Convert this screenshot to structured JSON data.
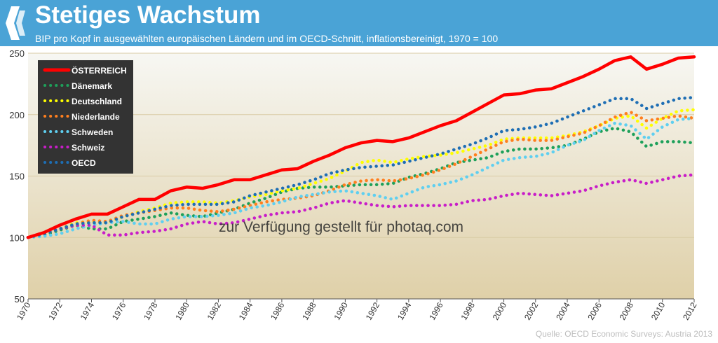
{
  "header": {
    "title": "Stetiges Wachstum",
    "subtitle": "BIP pro Kopf in ausgewählten europäischen Ländern und im OECD-Schnitt, inflationsbereinigt, 1970 = 100"
  },
  "watermark": "zur Verfügung gestellt für photaq.com",
  "source": "Quelle: OECD Economic Surveys: Austria 2013",
  "colors": {
    "header": "#4aa3d6",
    "plot_top": "#f7f7f3",
    "plot_bottom": "#dfd0a8"
  },
  "chart_data": {
    "type": "line",
    "title": "Stetiges Wachstum",
    "subtitle": "BIP pro Kopf in ausgewählten europäischen Ländern und im OECD-Schnitt, inflationsbereinigt, 1970 = 100",
    "xlabel": "",
    "ylabel": "",
    "ylim": [
      50,
      250
    ],
    "yticks": [
      50,
      100,
      150,
      200,
      250
    ],
    "xlim": [
      1970,
      2012
    ],
    "xticks": [
      "1970",
      "1972",
      "1974",
      "1976",
      "1978",
      "1980",
      "1982",
      "1984",
      "1986",
      "1988",
      "1990",
      "1992",
      "1994",
      "1996",
      "1998",
      "2000",
      "2002",
      "2004",
      "2006",
      "2008",
      "2010",
      "2012"
    ],
    "grid": true,
    "legend_position": "top-left",
    "x": [
      1970,
      1971,
      1972,
      1973,
      1974,
      1975,
      1976,
      1977,
      1978,
      1979,
      1980,
      1981,
      1982,
      1983,
      1984,
      1985,
      1986,
      1987,
      1988,
      1989,
      1990,
      1991,
      1992,
      1993,
      1994,
      1995,
      1996,
      1997,
      1998,
      1999,
      2000,
      2001,
      2002,
      2003,
      2004,
      2005,
      2006,
      2007,
      2008,
      2009,
      2010,
      2011,
      2012
    ],
    "series": [
      {
        "name": "ÖSTERREICH",
        "style": "solid",
        "color": "#ff0000",
        "values": [
          100,
          104,
          110,
          115,
          119,
          119,
          125,
          131,
          131,
          138,
          141,
          140,
          143,
          147,
          147,
          151,
          155,
          156,
          162,
          167,
          173,
          177,
          179,
          178,
          181,
          186,
          191,
          195,
          202,
          209,
          216,
          217,
          220,
          221,
          226,
          231,
          237,
          244,
          247,
          237,
          241,
          246,
          247
        ]
      },
      {
        "name": "Dänemark",
        "style": "dotted",
        "color": "#1ea05a",
        "values": [
          100,
          102,
          106,
          110,
          107,
          107,
          113,
          115,
          117,
          120,
          118,
          117,
          120,
          123,
          128,
          132,
          137,
          140,
          141,
          141,
          142,
          143,
          143,
          144,
          149,
          152,
          156,
          161,
          163,
          165,
          170,
          172,
          172,
          173,
          175,
          180,
          186,
          189,
          186,
          174,
          178,
          178,
          177
        ]
      },
      {
        "name": "Deutschland",
        "style": "dotted",
        "color": "#ffff00",
        "values": [
          100,
          103,
          107,
          112,
          113,
          112,
          117,
          121,
          124,
          128,
          129,
          129,
          128,
          130,
          133,
          135,
          138,
          140,
          144,
          148,
          154,
          161,
          163,
          161,
          164,
          166,
          167,
          169,
          172,
          175,
          180,
          181,
          181,
          181,
          183,
          186,
          191,
          197,
          199,
          189,
          197,
          203,
          204
        ]
      },
      {
        "name": "Niederlande",
        "style": "dotted",
        "color": "#ff7f1e",
        "values": [
          100,
          103,
          107,
          111,
          114,
          113,
          118,
          120,
          122,
          124,
          124,
          122,
          121,
          123,
          126,
          129,
          131,
          132,
          134,
          138,
          143,
          146,
          147,
          146,
          148,
          151,
          155,
          160,
          166,
          172,
          178,
          180,
          179,
          179,
          182,
          185,
          191,
          198,
          202,
          195,
          197,
          199,
          197
        ]
      },
      {
        "name": "Schweden",
        "style": "dotted",
        "color": "#5fcff0",
        "values": [
          100,
          101,
          103,
          107,
          110,
          112,
          113,
          111,
          111,
          115,
          117,
          117,
          118,
          120,
          124,
          126,
          129,
          133,
          135,
          137,
          138,
          136,
          134,
          131,
          136,
          141,
          143,
          146,
          151,
          157,
          163,
          165,
          166,
          169,
          175,
          179,
          187,
          193,
          191,
          180,
          190,
          196,
          197
        ]
      },
      {
        "name": "Schweiz",
        "style": "dotted",
        "color": "#c81ec8",
        "values": [
          100,
          104,
          107,
          110,
          110,
          102,
          102,
          104,
          105,
          107,
          111,
          113,
          111,
          112,
          115,
          118,
          120,
          121,
          124,
          128,
          130,
          128,
          126,
          125,
          126,
          126,
          126,
          127,
          130,
          131,
          134,
          136,
          135,
          134,
          136,
          138,
          142,
          145,
          147,
          144,
          147,
          150,
          151
        ]
      },
      {
        "name": "OECD",
        "style": "dotted",
        "color": "#1e6eb4",
        "values": [
          100,
          103,
          107,
          111,
          112,
          112,
          117,
          120,
          123,
          126,
          127,
          127,
          127,
          129,
          134,
          137,
          140,
          143,
          147,
          152,
          155,
          157,
          158,
          159,
          162,
          165,
          168,
          172,
          176,
          181,
          187,
          188,
          190,
          193,
          198,
          203,
          208,
          213,
          213,
          205,
          209,
          213,
          214
        ]
      }
    ]
  }
}
